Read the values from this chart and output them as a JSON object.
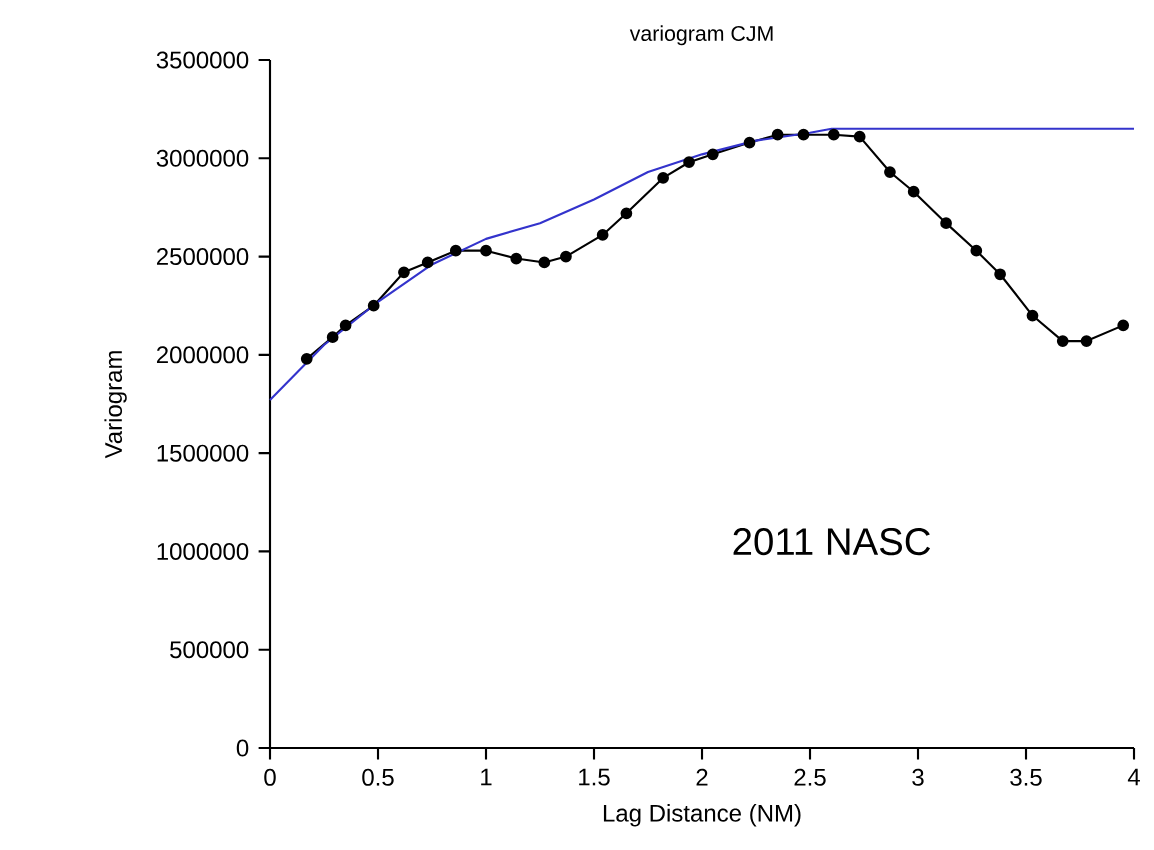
{
  "chart_data": {
    "type": "line",
    "title": "variogram CJM",
    "xlabel": "Lag Distance (NM)",
    "ylabel": "Variogram",
    "annotations": [
      "2011 NASC"
    ],
    "xlim": [
      0,
      4
    ],
    "xticks": [
      0,
      0.5,
      1,
      1.5,
      2,
      2.5,
      3,
      3.5,
      4
    ],
    "ylim": [
      0,
      3500000
    ],
    "yticks": [
      0,
      500000,
      1000000,
      1500000,
      2000000,
      2500000,
      3000000,
      3500000
    ],
    "grid": false,
    "line_style": "solid",
    "series": [
      {
        "color": "#000000",
        "marker": "circle",
        "x": [
          0.17,
          0.29,
          0.35,
          0.48,
          0.62,
          0.73,
          0.86,
          1.0,
          1.14,
          1.27,
          1.37,
          1.54,
          1.65,
          1.82,
          1.94,
          2.05,
          2.22,
          2.35,
          2.47,
          2.61,
          2.73,
          2.87,
          2.98,
          3.13,
          3.27,
          3.38,
          3.53,
          3.67,
          3.78,
          3.95
        ],
        "values": [
          1980000,
          2090000,
          2150000,
          2250000,
          2420000,
          2470000,
          2530000,
          2530000,
          2490000,
          2470000,
          2500000,
          2610000,
          2720000,
          2900000,
          2980000,
          3020000,
          3080000,
          3120000,
          3120000,
          3120000,
          3110000,
          2930000,
          2830000,
          2670000,
          2530000,
          2410000,
          2200000,
          2070000,
          2070000,
          2150000
        ]
      },
      {
        "color": "#3333cc",
        "marker": "none",
        "x": [
          0,
          0.25,
          0.5,
          0.75,
          1.0,
          1.25,
          1.5,
          1.75,
          2.0,
          2.25,
          2.5,
          2.6,
          4
        ],
        "values": [
          1770000,
          2050000,
          2270000,
          2460000,
          2590000,
          2670000,
          2790000,
          2930000,
          3020000,
          3090000,
          3130000,
          3150000,
          3150000
        ]
      }
    ]
  }
}
